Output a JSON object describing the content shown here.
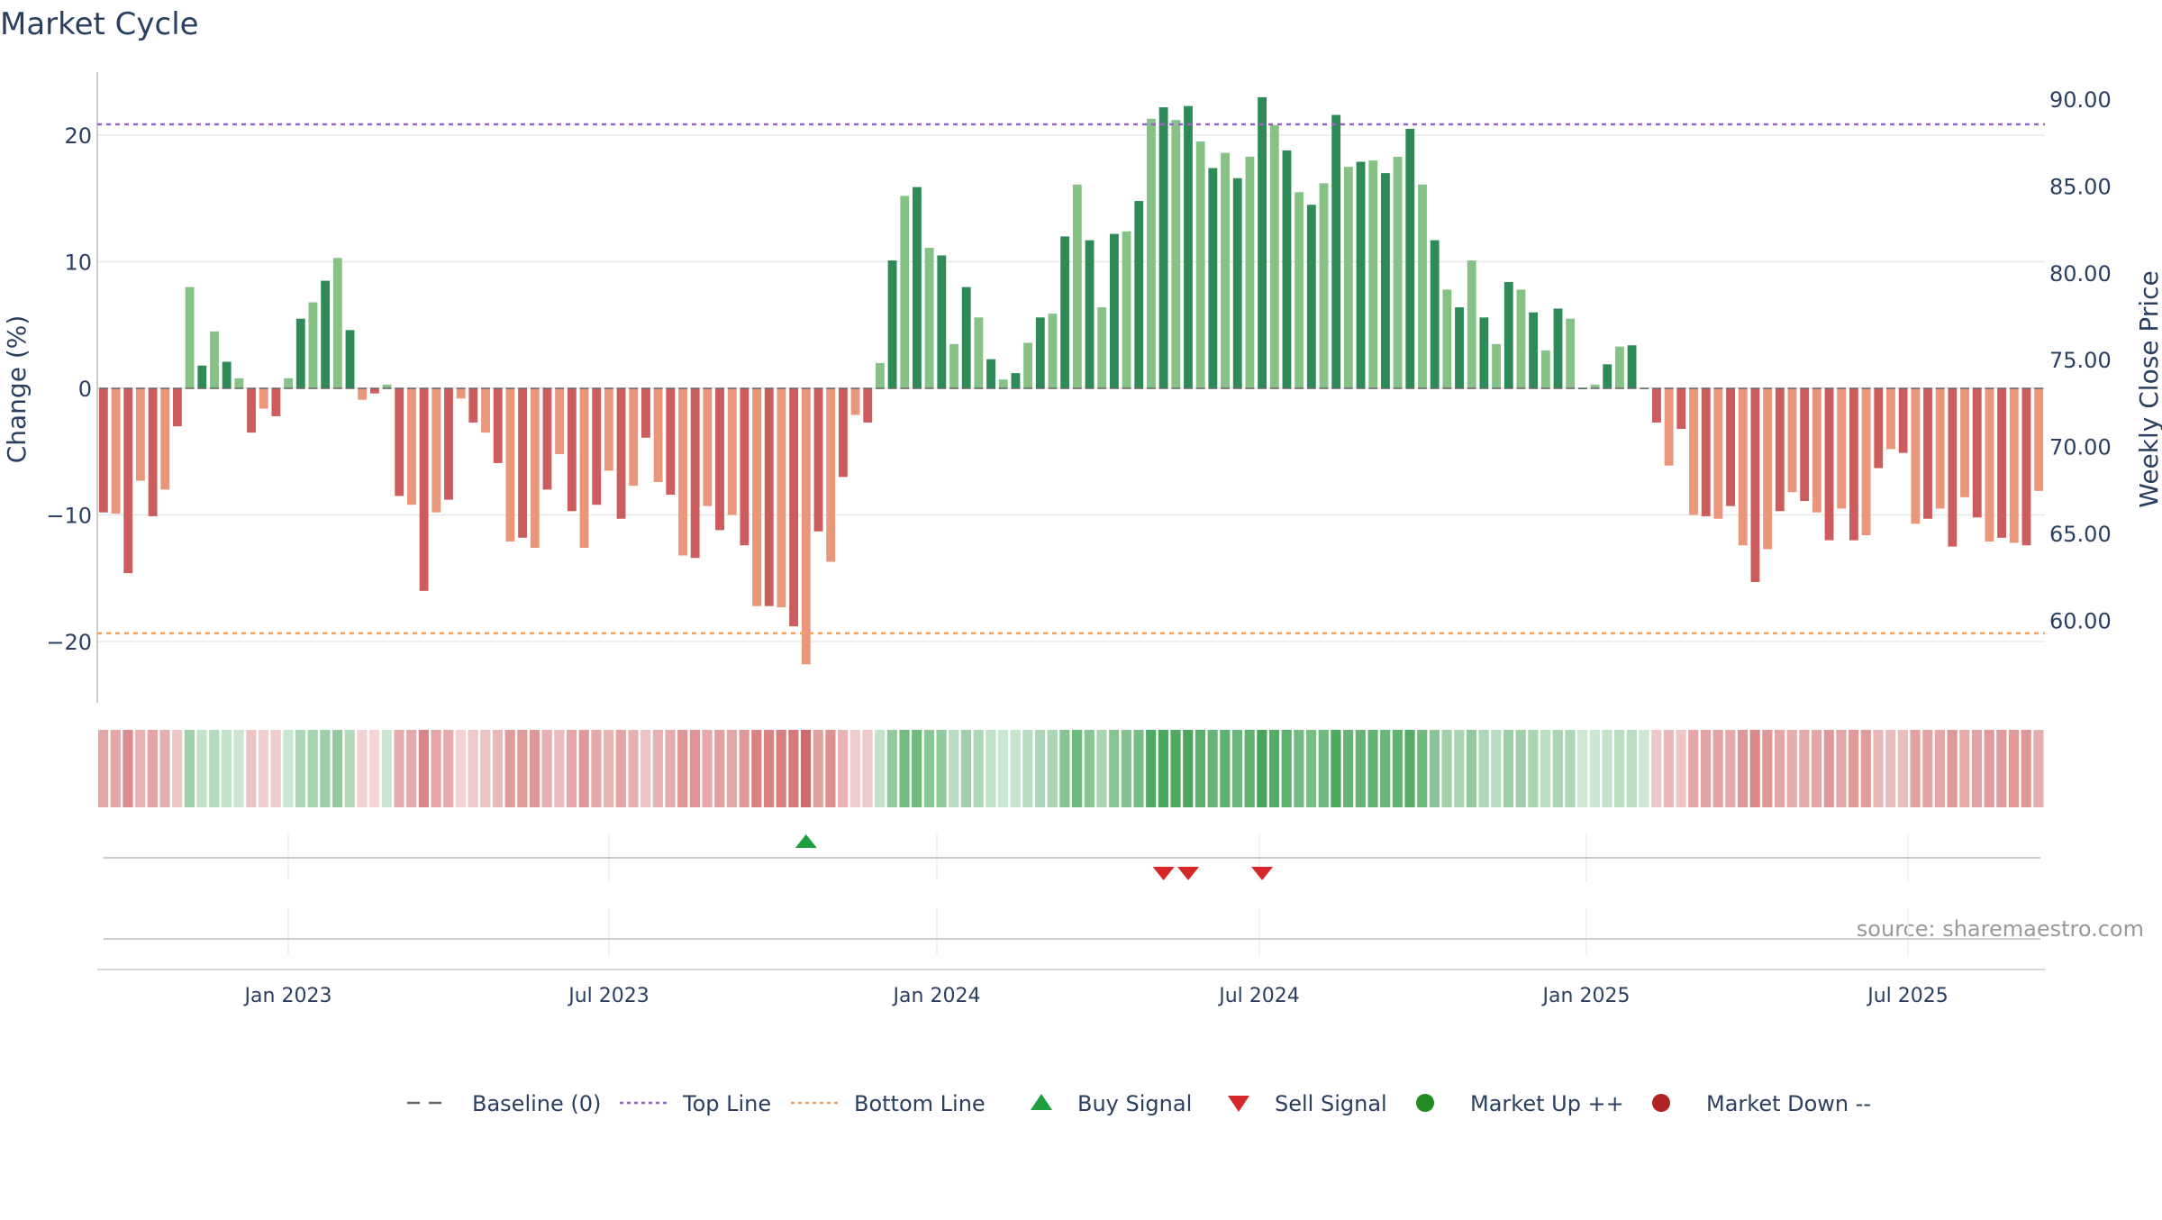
{
  "chart_data": {
    "type": "bar",
    "title": "Market Cycle",
    "ylabel": "Change (%)",
    "y2label": "Weekly Close Price",
    "ylim": [
      -25,
      25
    ],
    "y2lim": [
      55,
      92
    ],
    "yticks": [
      "20",
      "10",
      "0",
      "−10",
      "−20"
    ],
    "y2ticks": [
      "90.00",
      "85.00",
      "80.00",
      "75.00",
      "70.00",
      "65.00",
      "60.00"
    ],
    "xticks": [
      "Jan 2023",
      "Jul 2023",
      "Jan 2024",
      "Jul 2024",
      "Jan 2025",
      "Jul 2025"
    ],
    "top_line": 20,
    "bottom_line": -17,
    "grid": true,
    "series": [
      {
        "values": [
          -9.8,
          -9.9,
          -14.6,
          -7.3,
          -10.1,
          -8.0,
          -3.0,
          8.0,
          1.8,
          4.5,
          2.1,
          0.8,
          -3.5,
          -1.6,
          -2.2,
          0.8,
          5.5,
          6.8,
          8.5,
          10.3,
          4.6,
          -0.9,
          -0.4,
          0.3,
          -8.5,
          -9.2,
          -16.0,
          -9.8,
          -8.8,
          -0.8,
          -2.7,
          -3.5,
          -5.9,
          -12.1,
          -11.8,
          -12.6,
          -8.0,
          -5.2,
          -9.7,
          -12.6,
          -9.2,
          -6.5,
          -10.3,
          -7.7,
          -3.9,
          -7.4,
          -8.4,
          -13.2,
          -13.4,
          -9.3,
          -11.2,
          -10.0,
          -12.4,
          -17.2,
          -17.2,
          -17.3,
          -18.8,
          -21.8,
          -11.3,
          -13.7,
          -7.0,
          -2.1,
          -2.7,
          2.0,
          10.1,
          15.2,
          15.9,
          11.1,
          10.5,
          3.5,
          8.0,
          5.6,
          2.3,
          0.7,
          1.2,
          3.6,
          5.6,
          5.9,
          12.0,
          16.1,
          11.7,
          6.4,
          12.2,
          12.4,
          14.8,
          21.3,
          22.2,
          21.2,
          22.3,
          19.5,
          17.4,
          18.6,
          16.6,
          18.3,
          23.0,
          20.8,
          18.8,
          15.5,
          14.5,
          16.2,
          21.6,
          17.5,
          17.9,
          18.0,
          17.0,
          18.3,
          20.5,
          16.1,
          11.7,
          7.8,
          6.4,
          10.1,
          5.6,
          3.5,
          8.4,
          7.8,
          6.0,
          3.0,
          6.3,
          5.5,
          0.0,
          0.3,
          1.9,
          3.3,
          3.4,
          0.0,
          -2.7,
          -6.1,
          -3.2,
          -10.0,
          -10.1,
          -10.3,
          -9.3,
          -12.4,
          -15.3,
          -12.7,
          -9.7,
          -8.2,
          -8.9,
          -9.8,
          -12.0,
          -9.5,
          -12.0,
          -11.6,
          -6.3,
          -4.8,
          -5.1,
          -10.7,
          -10.3,
          -9.5,
          -12.5,
          -8.6,
          -10.2,
          -12.1,
          -11.8,
          -12.2,
          -12.4,
          -8.1
        ]
      }
    ],
    "signals": {
      "buy_bar_indices": [
        57
      ],
      "sell_bar_indices": [
        86,
        88,
        94
      ]
    },
    "source_text": "source: sharemaestro.com",
    "legend": {
      "placement": "bottom-center",
      "items": [
        {
          "label": "Baseline (0)",
          "marker": "dash",
          "color": "#666666"
        },
        {
          "label": "Top Line",
          "marker": "dot",
          "color": "#9467bd"
        },
        {
          "label": "Bottom Line",
          "marker": "dot",
          "color": "#f0a060"
        },
        {
          "label": "Buy Signal",
          "marker": "triangle-up",
          "color": "#1e9e3e"
        },
        {
          "label": "Sell Signal",
          "marker": "triangle-down",
          "color": "#d62728"
        },
        {
          "label": "Market Up ++",
          "marker": "circle",
          "color": "#228b22"
        },
        {
          "label": "Market Down --",
          "marker": "circle",
          "color": "#b22222"
        }
      ]
    }
  },
  "colors": {
    "up_dark": "#2e8b57",
    "up_light": "#86c286",
    "down_dark": "#cd5c5c",
    "down_light": "#e9967a",
    "top_line": "#9467bd",
    "bottom_line": "#f0a060",
    "buy": "#1e9e3e",
    "sell": "#d62728"
  }
}
